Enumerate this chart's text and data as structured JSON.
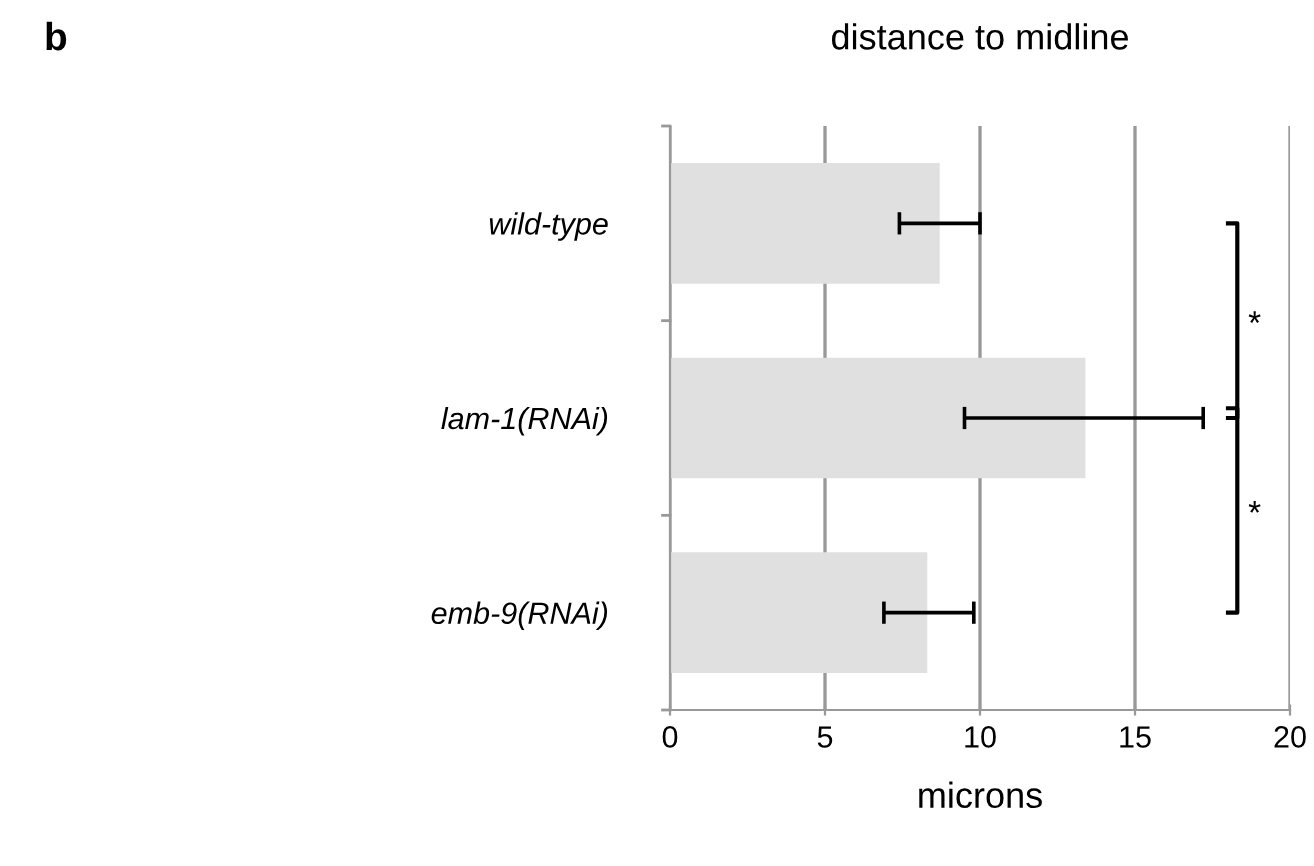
{
  "chart_data": {
    "type": "bar",
    "orientation": "horizontal",
    "title": "distance to midline",
    "xlabel": "microns",
    "categories": [
      "wild-type",
      "lam-1(RNAi)",
      "emb-9(RNAi)"
    ],
    "values": [
      8.7,
      13.4,
      8.3
    ],
    "errors": [
      [
        7.4,
        10.0
      ],
      [
        9.5,
        17.2
      ],
      [
        6.9,
        9.8
      ]
    ],
    "color": "#e0e0e0",
    "xlim": [
      0,
      20
    ],
    "xticks": [
      0,
      5,
      10,
      15,
      20
    ],
    "grid": "x",
    "annotations": [
      "b",
      "*",
      "*"
    ]
  }
}
